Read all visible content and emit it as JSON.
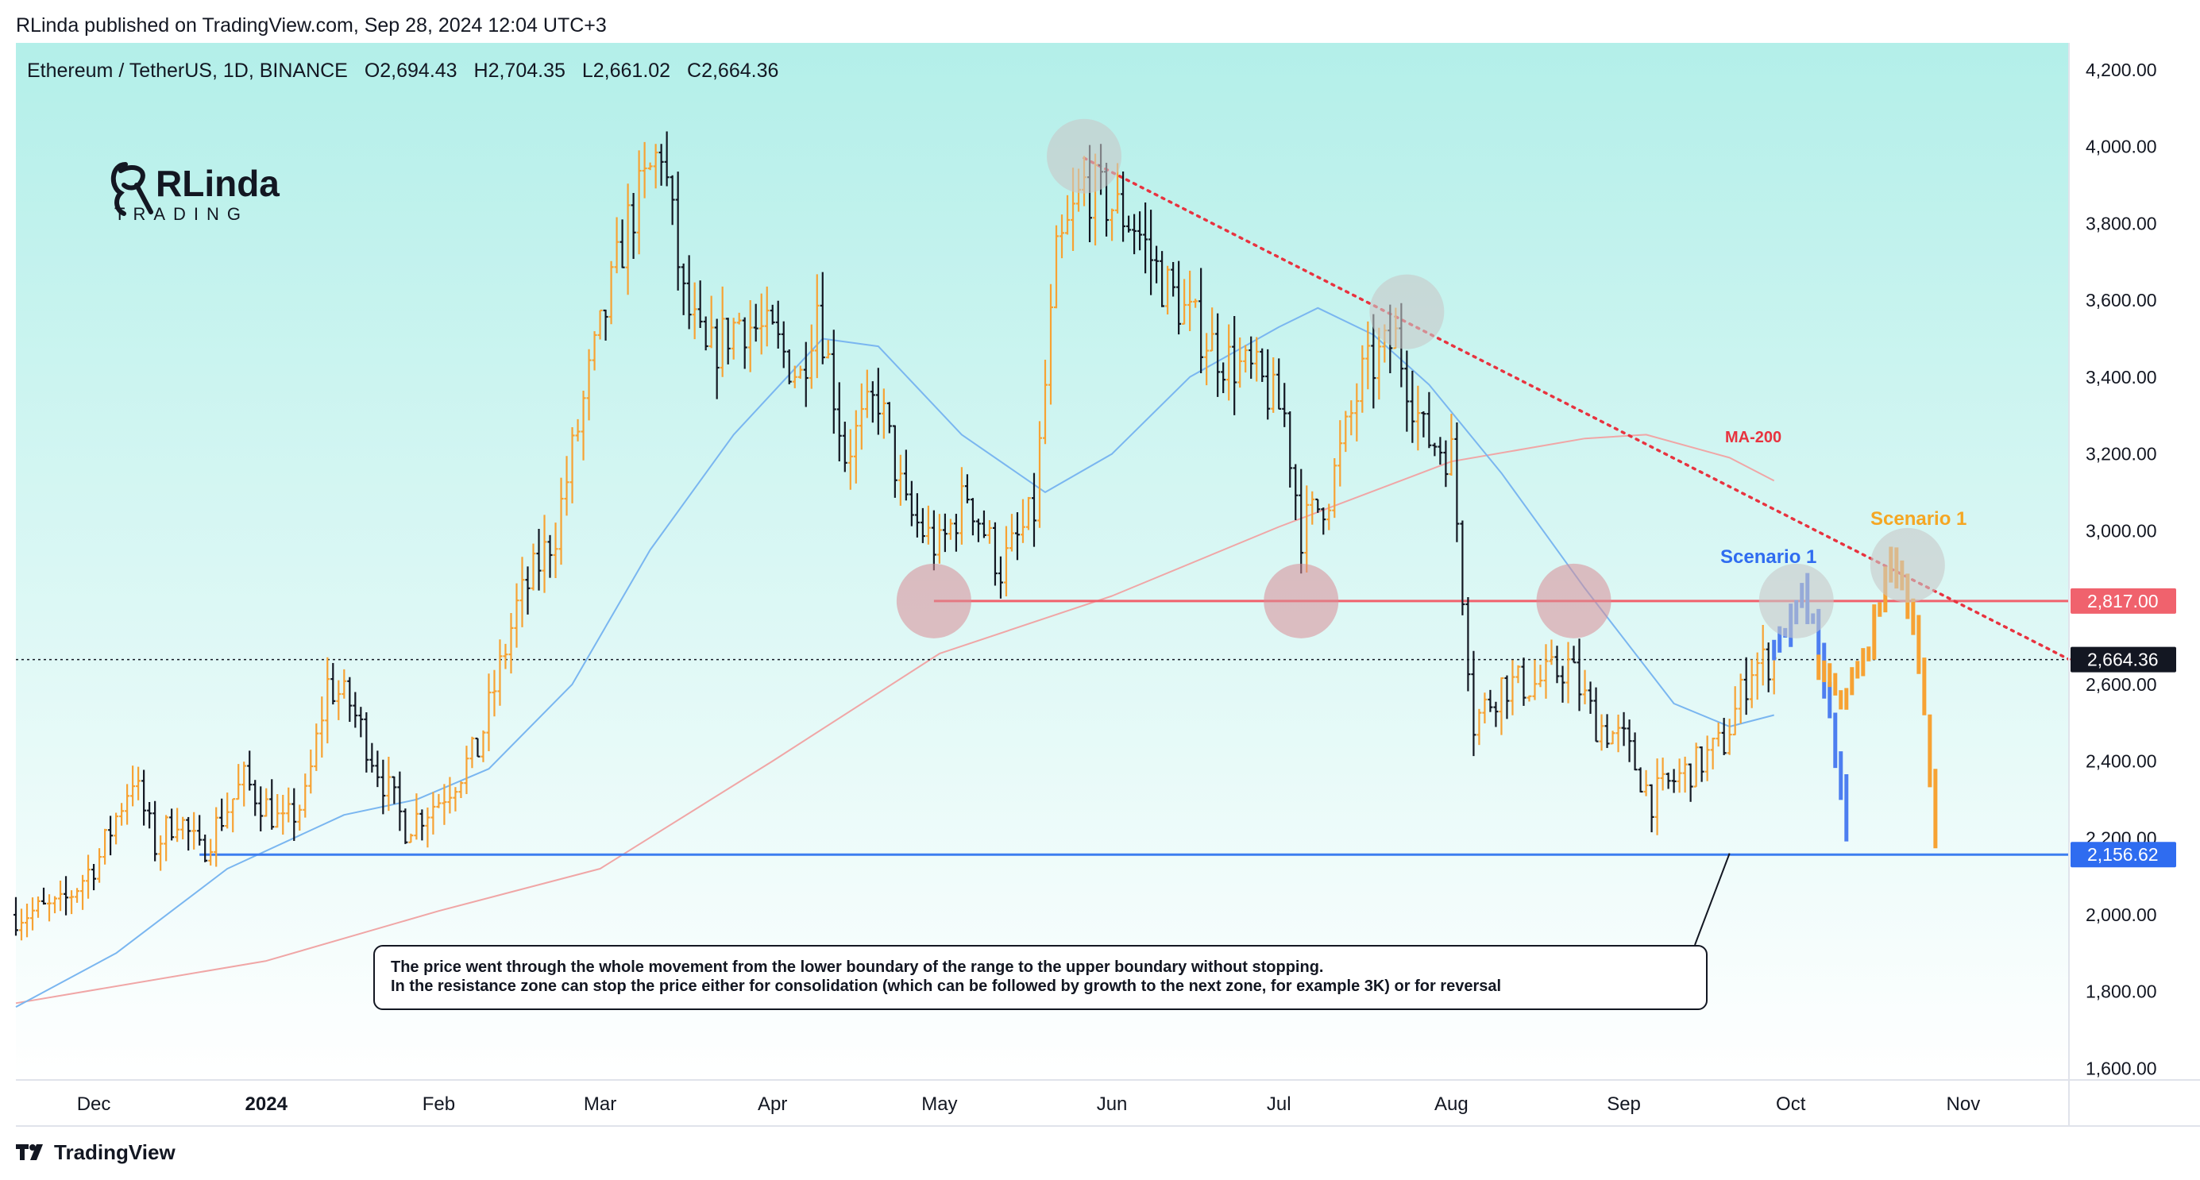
{
  "header": {
    "publisher": "RLinda published on TradingView.com, Sep 28, 2024 12:04 UTC+3",
    "symbol": "Ethereum / TetherUS, 1D, BINANCE",
    "open": "O2,694.43",
    "high": "H2,704.35",
    "low": "L2,661.02",
    "close": "C2,664.36"
  },
  "brand": {
    "logo_text_top": "RLinda",
    "logo_text_bottom": "TRADING"
  },
  "footer": {
    "logo_text": "TradingView"
  },
  "annotation": {
    "line1": "The price went through the whole movement from the lower boundary of the range to the upper boundary without stopping.",
    "line2": "In the resistance zone can stop the price either for consolidation (which can be followed by growth to the next zone, for example 3K) or for reversal"
  },
  "labels": {
    "scenario_blue": "Scenario 1",
    "scenario_orange": "Scenario 1",
    "ma200": "MA-200"
  },
  "colors": {
    "bg_top": "#b3efe9",
    "bg_bottom": "#ffffff",
    "up_bar": "#f7a233",
    "down_bar": "#131722",
    "ma_fast": "#7ab6f0",
    "ma_200": "#f0a6a6",
    "resistance": "#f0626d",
    "support": "#3d7ef0",
    "trendline": "#e8333f",
    "scenario_blue": "#4d7ef0",
    "scenario_orange": "#f7a233",
    "circle_red": "#d98c96",
    "circle_gray": "#c8c8c8",
    "label_blue": "#2f6cf0",
    "label_orange": "#f5a623",
    "label_ma": "#e8333f"
  },
  "chart_data": {
    "type": "ohlc",
    "y_axis": {
      "ticks": [
        1600,
        1800,
        2000,
        2200,
        2400,
        2600,
        3000,
        3200,
        3400,
        3600,
        3800,
        4000,
        4200
      ],
      "tick_labels": [
        "1,600.00",
        "1,800.00",
        "2,000.00",
        "2,200.00",
        "2,400.00",
        "2,600.00",
        "3,000.00",
        "3,200.00",
        "3,400.00",
        "3,600.00",
        "3,800.00",
        "4,000.00",
        "4,200.00"
      ],
      "range": [
        1570,
        4270
      ]
    },
    "x_axis": {
      "labels": [
        "Dec",
        "2024",
        "Feb",
        "Mar",
        "Apr",
        "May",
        "Jun",
        "Jul",
        "Aug",
        "Sep",
        "Oct",
        "Nov"
      ],
      "dates": [
        "2023-12-01",
        "2024-01-01",
        "2024-02-01",
        "2024-03-01",
        "2024-04-01",
        "2024-05-01",
        "2024-06-01",
        "2024-07-01",
        "2024-08-01",
        "2024-09-01",
        "2024-10-01",
        "2024-11-01"
      ],
      "start": "2023-11-17",
      "end": "2024-11-20"
    },
    "price_tags": [
      {
        "value": 2817.0,
        "label": "2,817.00",
        "color": "#f0626d"
      },
      {
        "value": 2664.36,
        "label": "2,664.36",
        "color": "#131722"
      },
      {
        "value": 2156.62,
        "label": "2,156.62",
        "color": "#2f6cf0"
      }
    ],
    "levels": [
      {
        "name": "resistance",
        "value": 2817,
        "from": "2024-04-30",
        "to": "2024-11-20"
      },
      {
        "name": "support",
        "value": 2156.62,
        "from": "2023-12-20",
        "to": "2024-11-20"
      }
    ],
    "current_price_line": 2664.36,
    "trendline": {
      "from": [
        "2024-05-27",
        3970
      ],
      "to": [
        "2024-11-20",
        2665
      ]
    },
    "anchor_points": [
      [
        "2023-11-17",
        2000
      ],
      [
        "2023-11-25",
        2020
      ],
      [
        "2023-12-02",
        2150
      ],
      [
        "2023-12-08",
        2360
      ],
      [
        "2023-12-12",
        2180
      ],
      [
        "2023-12-16",
        2260
      ],
      [
        "2023-12-20",
        2160
      ],
      [
        "2023-12-28",
        2350
      ],
      [
        "2024-01-04",
        2230
      ],
      [
        "2024-01-08",
        2300
      ],
      [
        "2024-01-12",
        2600
      ],
      [
        "2024-01-16",
        2550
      ],
      [
        "2024-01-22",
        2350
      ],
      [
        "2024-01-26",
        2230
      ],
      [
        "2024-02-01",
        2300
      ],
      [
        "2024-02-08",
        2430
      ],
      [
        "2024-02-15",
        2800
      ],
      [
        "2024-02-22",
        3000
      ],
      [
        "2024-02-28",
        3400
      ],
      [
        "2024-03-06",
        3800
      ],
      [
        "2024-03-12",
        4000
      ],
      [
        "2024-03-16",
        3600
      ],
      [
        "2024-03-20",
        3450
      ],
      [
        "2024-03-26",
        3550
      ],
      [
        "2024-04-01",
        3500
      ],
      [
        "2024-04-06",
        3400
      ],
      [
        "2024-04-09",
        3600
      ],
      [
        "2024-04-14",
        3200
      ],
      [
        "2024-04-20",
        3350
      ],
      [
        "2024-04-25",
        3050
      ],
      [
        "2024-05-01",
        2950
      ],
      [
        "2024-05-06",
        3100
      ],
      [
        "2024-05-12",
        2900
      ],
      [
        "2024-05-18",
        3050
      ],
      [
        "2024-05-22",
        3700
      ],
      [
        "2024-05-27",
        3900
      ],
      [
        "2024-06-05",
        3800
      ],
      [
        "2024-06-10",
        3650
      ],
      [
        "2024-06-15",
        3550
      ],
      [
        "2024-06-21",
        3450
      ],
      [
        "2024-06-27",
        3400
      ],
      [
        "2024-07-02",
        3300
      ],
      [
        "2024-07-05",
        3000
      ],
      [
        "2024-07-10",
        3100
      ],
      [
        "2024-07-16",
        3400
      ],
      [
        "2024-07-22",
        3500
      ],
      [
        "2024-07-27",
        3250
      ],
      [
        "2024-08-01",
        3200
      ],
      [
        "2024-08-05",
        2500
      ],
      [
        "2024-08-10",
        2600
      ],
      [
        "2024-08-16",
        2600
      ],
      [
        "2024-08-22",
        2650
      ],
      [
        "2024-08-27",
        2500
      ],
      [
        "2024-09-01",
        2450
      ],
      [
        "2024-09-06",
        2300
      ],
      [
        "2024-09-10",
        2350
      ],
      [
        "2024-09-15",
        2400
      ],
      [
        "2024-09-19",
        2450
      ],
      [
        "2024-09-24",
        2650
      ],
      [
        "2024-09-28",
        2664
      ]
    ],
    "ma_fast": [
      [
        "2023-11-17",
        1760
      ],
      [
        "2023-12-05",
        1900
      ],
      [
        "2023-12-25",
        2120
      ],
      [
        "2024-01-15",
        2260
      ],
      [
        "2024-01-28",
        2300
      ],
      [
        "2024-02-10",
        2380
      ],
      [
        "2024-02-25",
        2600
      ],
      [
        "2024-03-10",
        2950
      ],
      [
        "2024-03-25",
        3250
      ],
      [
        "2024-04-10",
        3500
      ],
      [
        "2024-04-20",
        3480
      ],
      [
        "2024-05-05",
        3250
      ],
      [
        "2024-05-20",
        3100
      ],
      [
        "2024-06-01",
        3200
      ],
      [
        "2024-06-15",
        3400
      ],
      [
        "2024-07-01",
        3530
      ],
      [
        "2024-07-08",
        3580
      ],
      [
        "2024-07-18",
        3510
      ],
      [
        "2024-07-28",
        3380
      ],
      [
        "2024-08-10",
        3150
      ],
      [
        "2024-08-25",
        2850
      ],
      [
        "2024-09-10",
        2550
      ],
      [
        "2024-09-20",
        2490
      ],
      [
        "2024-09-28",
        2520
      ]
    ],
    "ma_200": [
      [
        "2023-11-17",
        1770
      ],
      [
        "2024-01-01",
        1880
      ],
      [
        "2024-02-01",
        2010
      ],
      [
        "2024-03-01",
        2120
      ],
      [
        "2024-04-01",
        2400
      ],
      [
        "2024-05-01",
        2680
      ],
      [
        "2024-06-01",
        2830
      ],
      [
        "2024-07-01",
        3010
      ],
      [
        "2024-08-01",
        3180
      ],
      [
        "2024-08-25",
        3240
      ],
      [
        "2024-09-05",
        3250
      ],
      [
        "2024-09-20",
        3190
      ],
      [
        "2024-09-28",
        3130
      ]
    ],
    "scenario_blue": [
      [
        "2024-09-28",
        2700
      ],
      [
        "2024-10-01",
        2760
      ],
      [
        "2024-10-03",
        2840
      ],
      [
        "2024-10-05",
        2740
      ],
      [
        "2024-10-07",
        2600
      ],
      [
        "2024-10-09",
        2420
      ],
      [
        "2024-10-11",
        2200
      ]
    ],
    "scenario_orange": [
      [
        "2024-10-06",
        2650
      ],
      [
        "2024-10-09",
        2560
      ],
      [
        "2024-10-13",
        2620
      ],
      [
        "2024-10-16",
        2760
      ],
      [
        "2024-10-19",
        2940
      ],
      [
        "2024-10-21",
        2860
      ],
      [
        "2024-10-23",
        2760
      ],
      [
        "2024-10-25",
        2500
      ],
      [
        "2024-10-27",
        2200
      ]
    ],
    "circles": [
      {
        "date": "2024-05-27",
        "value": 3975,
        "style": "gray"
      },
      {
        "date": "2024-07-24",
        "value": 3570,
        "style": "gray"
      },
      {
        "date": "2024-04-30",
        "value": 2817,
        "style": "red"
      },
      {
        "date": "2024-07-05",
        "value": 2817,
        "style": "red"
      },
      {
        "date": "2024-08-23",
        "value": 2817,
        "style": "red"
      },
      {
        "date": "2024-10-02",
        "value": 2817,
        "style": "gray"
      },
      {
        "date": "2024-10-22",
        "value": 2910,
        "style": "gray"
      }
    ],
    "annotation_pointer": {
      "date": "2024-09-20",
      "value": 2160
    }
  }
}
